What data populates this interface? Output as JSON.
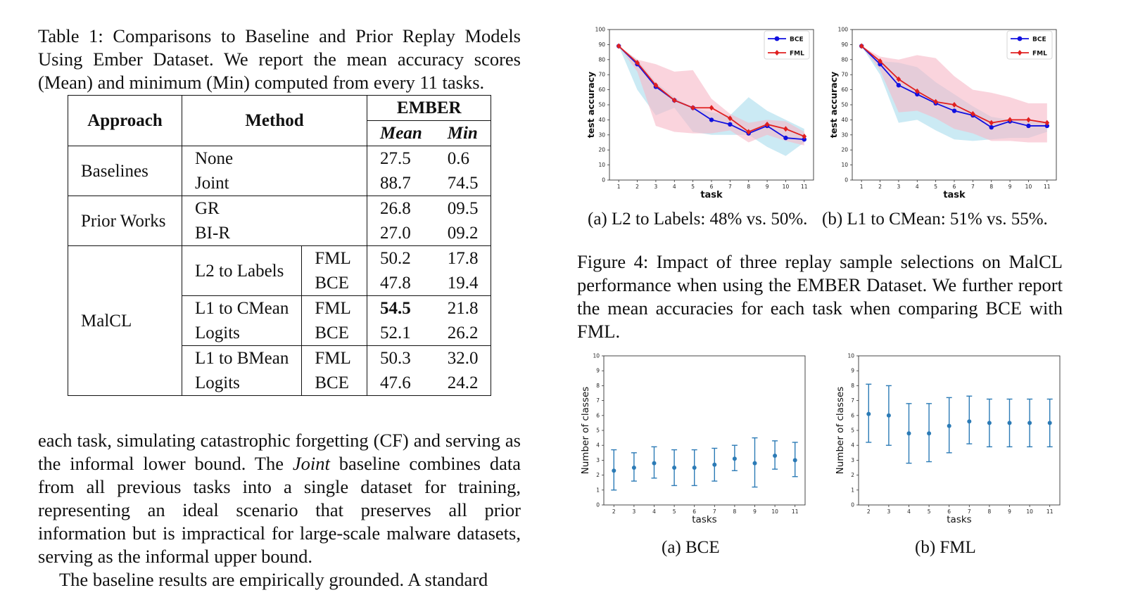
{
  "table_caption": "Table 1: Comparisons to Baseline and Prior Replay Models Using Ember Dataset. We report the mean accuracy scores (Mean) and minimum (Min) computed from every 11 tasks.",
  "table": {
    "header": {
      "approach": "Approach",
      "method": "Method",
      "dataset": "EMBER",
      "mean": "Mean",
      "min": "Min"
    },
    "rows": [
      {
        "approach": "Baselines",
        "method": "None",
        "loss": "",
        "mean": "27.5",
        "min": "0.6"
      },
      {
        "approach": "",
        "method": "Joint",
        "loss": "",
        "mean": "88.7",
        "min": "74.5"
      },
      {
        "approach": "Prior Works",
        "method": "GR",
        "loss": "",
        "mean": "26.8",
        "min": "09.5"
      },
      {
        "approach": "",
        "method": "BI-R",
        "loss": "",
        "mean": "27.0",
        "min": "09.2"
      },
      {
        "approach": "MalCL",
        "method": "L2 to Labels",
        "loss": "FML",
        "mean": "50.2",
        "min": "17.8"
      },
      {
        "approach": "",
        "method": "",
        "loss": "BCE",
        "mean": "47.8",
        "min": "19.4"
      },
      {
        "approach": "",
        "method": "L1 to CMean",
        "loss": "FML",
        "mean": "54.5",
        "min": "21.8"
      },
      {
        "approach": "",
        "method": "Logits",
        "loss": "BCE",
        "mean": "52.1",
        "min": "26.2"
      },
      {
        "approach": "",
        "method": "L1 to BMean",
        "loss": "FML",
        "mean": "50.3",
        "min": "32.0"
      },
      {
        "approach": "",
        "method": "Logits",
        "loss": "BCE",
        "mean": "47.6",
        "min": "24.2"
      }
    ]
  },
  "body_text": {
    "p1_before": "each task, simulating catastrophic forgetting (CF) and serving as the informal lower bound. The ",
    "p1_ital": "Joint",
    "p1_after": " baseline combines data from all previous tasks into a single dataset for training, representing an ideal scenario that preserves all prior information but is impractical for large-scale malware datasets, serving as the informal upper bound.",
    "p2": "The baseline results are empirically grounded. A standard"
  },
  "figure4": {
    "caption": "Figure 4: Impact of three replay sample selections on MalCL performance when using the EMBER Dataset. We further report the mean accuracies for each task when comparing BCE with FML.",
    "subcaption_a": "(a) L2 to Labels: 48% vs. 50%.",
    "subcaption_b": "(b) L1 to CMean: 51% vs. 55%."
  },
  "figure5": {
    "subcaption_a": "(a) BCE",
    "subcaption_b": "(b) FML"
  },
  "colors": {
    "bce": "#1010e0",
    "fml": "#e02020",
    "bce_band": "#a8dcec",
    "fml_band": "#f7b7c7",
    "errbar": "#2c7bb6"
  },
  "chart_data": [
    {
      "type": "line",
      "xlabel": "task",
      "ylabel": "test accuracy",
      "x": [
        1,
        2,
        3,
        4,
        5,
        6,
        7,
        8,
        9,
        10,
        11
      ],
      "xlim": [
        0.5,
        11.5
      ],
      "ylim": [
        0,
        100
      ],
      "yticks": [
        0,
        10,
        20,
        30,
        40,
        50,
        60,
        70,
        80,
        90,
        100
      ],
      "legend": "top-right",
      "series": [
        {
          "name": "BCE",
          "values": [
            89,
            77,
            62,
            53,
            48,
            40,
            37,
            31,
            36,
            28,
            27
          ],
          "band_low": [
            89,
            60,
            43,
            48,
            32,
            30,
            30,
            30,
            22,
            16,
            25
          ],
          "band_high": [
            89,
            80,
            65,
            55,
            48,
            45,
            43,
            55,
            46,
            40,
            34
          ]
        },
        {
          "name": "FML",
          "values": [
            89,
            78,
            63,
            53,
            48,
            48,
            41,
            32,
            37,
            34,
            29
          ],
          "band_low": [
            89,
            72,
            36,
            32,
            31,
            31,
            33,
            25,
            30,
            26,
            23
          ],
          "band_high": [
            89,
            80,
            77,
            72,
            73,
            54,
            44,
            38,
            40,
            39,
            32
          ]
        }
      ]
    },
    {
      "type": "line",
      "xlabel": "task",
      "ylabel": "test accuracy",
      "x": [
        1,
        2,
        3,
        4,
        5,
        6,
        7,
        8,
        9,
        10,
        11
      ],
      "xlim": [
        0.5,
        11.5
      ],
      "ylim": [
        0,
        100
      ],
      "yticks": [
        0,
        10,
        20,
        30,
        40,
        50,
        60,
        70,
        80,
        90,
        100
      ],
      "legend": "top-right",
      "series": [
        {
          "name": "BCE",
          "values": [
            89,
            77,
            63,
            57,
            51,
            46,
            43,
            35,
            39,
            36,
            36
          ],
          "band_low": [
            89,
            70,
            38,
            40,
            33,
            27,
            26,
            27,
            28,
            28,
            32
          ],
          "band_high": [
            89,
            79,
            78,
            75,
            65,
            57,
            49,
            42,
            40,
            40,
            38
          ]
        },
        {
          "name": "FML",
          "values": [
            89,
            79,
            67,
            59,
            52,
            50,
            44,
            38,
            40,
            40,
            38
          ],
          "band_low": [
            89,
            73,
            45,
            46,
            41,
            34,
            31,
            26,
            26,
            25,
            25
          ],
          "band_high": [
            89,
            82,
            80,
            83,
            81,
            69,
            60,
            58,
            55,
            51,
            51
          ]
        }
      ]
    },
    {
      "type": "errorbar",
      "xlabel": "tasks",
      "ylabel": "Number of classes",
      "x": [
        2,
        3,
        4,
        5,
        6,
        7,
        8,
        9,
        10,
        11
      ],
      "xlim": [
        1.5,
        11.5
      ],
      "ylim": [
        0,
        10
      ],
      "yticks": [
        0,
        1,
        2,
        3,
        4,
        5,
        6,
        7,
        8,
        9,
        10
      ],
      "series": [
        {
          "values": [
            2.3,
            2.5,
            2.8,
            2.5,
            2.5,
            2.7,
            3.1,
            2.8,
            3.3,
            3.0
          ],
          "err_low": [
            1.0,
            1.6,
            1.8,
            1.3,
            1.3,
            1.6,
            2.3,
            1.2,
            2.4,
            1.9
          ],
          "err_high": [
            3.7,
            3.5,
            3.9,
            3.7,
            3.7,
            3.8,
            4.0,
            4.5,
            4.3,
            4.2
          ]
        }
      ]
    },
    {
      "type": "errorbar",
      "xlabel": "tasks",
      "ylabel": "Number of classes",
      "x": [
        2,
        3,
        4,
        5,
        6,
        7,
        8,
        9,
        10,
        11
      ],
      "xlim": [
        1.5,
        11.5
      ],
      "ylim": [
        0,
        10
      ],
      "yticks": [
        0,
        1,
        2,
        3,
        4,
        5,
        6,
        7,
        8,
        9,
        10
      ],
      "series": [
        {
          "values": [
            6.1,
            6.0,
            4.8,
            4.8,
            5.3,
            5.6,
            5.5,
            5.5,
            5.5,
            5.5
          ],
          "err_low": [
            4.2,
            4.0,
            2.8,
            2.9,
            3.5,
            4.1,
            3.9,
            3.9,
            3.9,
            3.9
          ],
          "err_high": [
            8.1,
            8.0,
            6.8,
            6.8,
            7.2,
            7.3,
            7.1,
            7.1,
            7.1,
            7.1
          ]
        }
      ]
    }
  ]
}
